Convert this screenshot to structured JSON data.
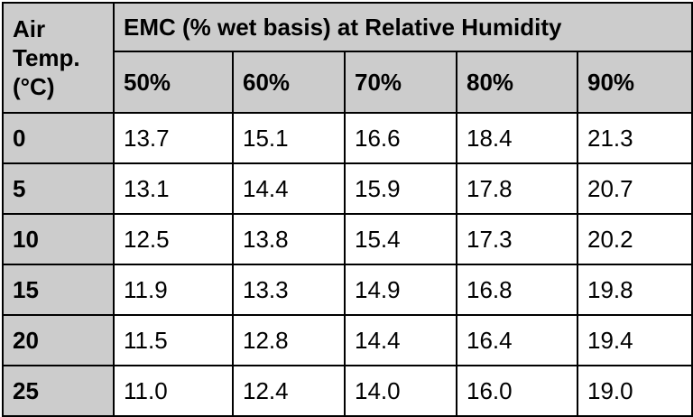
{
  "table": {
    "corner_header": "Air Temp. (°C)",
    "corner_lines": [
      "Air",
      "Temp.",
      "(°C)"
    ],
    "group_header": "EMC (% wet basis) at Relative Humidity",
    "columns": [
      "50%",
      "60%",
      "70%",
      "80%",
      "90%"
    ],
    "rows": [
      {
        "temp": "0",
        "values": [
          "13.7",
          "15.1",
          "16.6",
          "18.4",
          "21.3"
        ]
      },
      {
        "temp": "5",
        "values": [
          "13.1",
          "14.4",
          "15.9",
          "17.8",
          "20.7"
        ]
      },
      {
        "temp": "10",
        "values": [
          "12.5",
          "13.8",
          "15.4",
          "17.3",
          "20.2"
        ]
      },
      {
        "temp": "15",
        "values": [
          "11.9",
          "13.3",
          "14.9",
          "16.8",
          "19.8"
        ]
      },
      {
        "temp": "20",
        "values": [
          "11.5",
          "12.8",
          "14.4",
          "16.4",
          "19.4"
        ]
      },
      {
        "temp": "25",
        "values": [
          "11.0",
          "12.4",
          "14.0",
          "16.0",
          "19.0"
        ]
      }
    ]
  },
  "colors": {
    "header_bg": "#cccccc",
    "cell_bg": "#ffffff",
    "border": "#000000"
  }
}
